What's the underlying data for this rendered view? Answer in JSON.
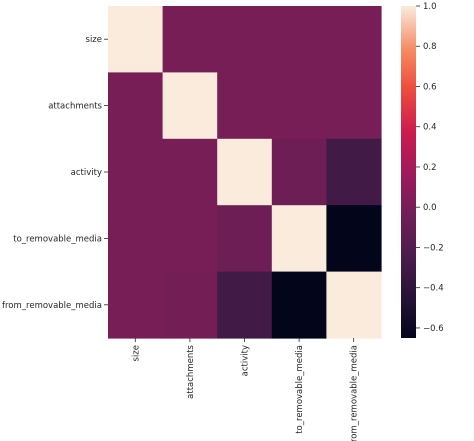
{
  "chart_data": {
    "type": "heatmap",
    "title": "",
    "xlabel": "",
    "ylabel": "",
    "row_labels": [
      "size",
      "attachments",
      "activity",
      "to_removable_media",
      "from_removable_media"
    ],
    "col_labels": [
      "size",
      "attachments",
      "activity",
      "to_removable_media",
      "from_removable_media"
    ],
    "values": [
      [
        1.0,
        0.0,
        0.0,
        0.0,
        0.0
      ],
      [
        0.0,
        1.0,
        0.0,
        0.0,
        0.0
      ],
      [
        0.0,
        0.0,
        1.0,
        -0.05,
        -0.3
      ],
      [
        0.0,
        0.0,
        -0.05,
        1.0,
        -0.65
      ],
      [
        0.0,
        -0.02,
        -0.3,
        -0.65,
        1.0
      ]
    ],
    "colorbar": {
      "min": -0.65,
      "max": 1.0,
      "ticks": [
        1.0,
        0.8,
        0.6,
        0.4,
        0.2,
        0.0,
        -0.2,
        -0.4,
        -0.6
      ],
      "tick_labels": [
        "1.0",
        "0.8",
        "0.6",
        "0.4",
        "0.2",
        "0.0",
        "−0.2",
        "−0.4",
        "−0.6"
      ],
      "colormap": "rocket"
    },
    "grid": false
  }
}
